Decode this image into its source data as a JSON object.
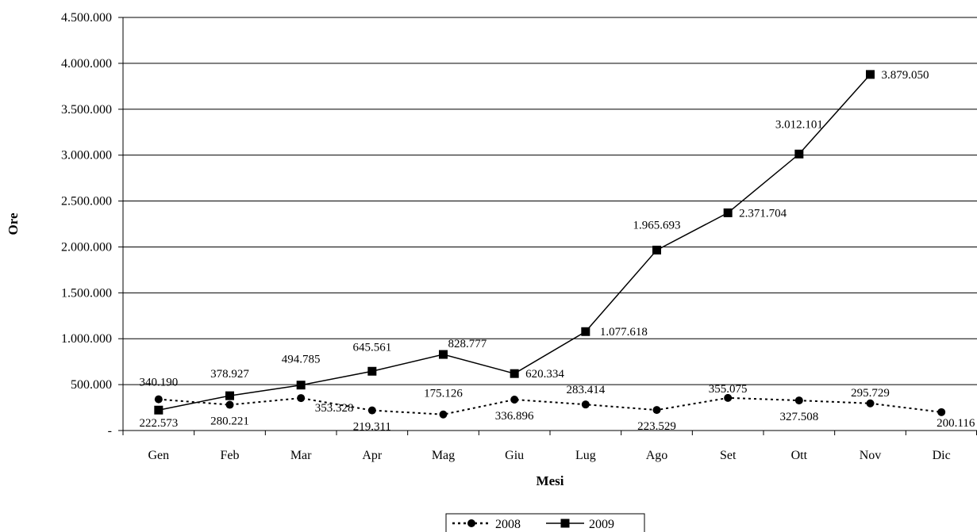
{
  "chart_data": {
    "type": "line",
    "xlabel": "Mesi",
    "ylabel": "Ore",
    "categories": [
      "Gen",
      "Feb",
      "Mar",
      "Apr",
      "Mag",
      "Giu",
      "Lug",
      "Ago",
      "Set",
      "Ott",
      "Nov",
      "Dic"
    ],
    "ylim": [
      0,
      4500000
    ],
    "yticks": [
      0,
      500000,
      1000000,
      1500000,
      2000000,
      2500000,
      3000000,
      3500000,
      4000000,
      4500000
    ],
    "ytick_labels": [
      "-",
      "500.000",
      "1.000.000",
      "1.500.000",
      "2.000.000",
      "2.500.000",
      "3.000.000",
      "3.500.000",
      "4.000.000",
      "4.500.000"
    ],
    "grid": true,
    "legend_position": "bottom-center",
    "series": [
      {
        "name": "2008",
        "style": "dotted",
        "marker": "circle",
        "color": "#000000",
        "values": [
          340190,
          280221,
          353328,
          219311,
          175126,
          336896,
          283414,
          223529,
          355075,
          327508,
          295729,
          200116
        ],
        "labels": [
          "340.190",
          "280.221",
          "353.328",
          "219.311",
          "175.126",
          "336.896",
          "283.414",
          "223.529",
          "355.075",
          "327.508",
          "295.729",
          "200.116"
        ]
      },
      {
        "name": "2009",
        "style": "solid",
        "marker": "square",
        "color": "#000000",
        "values": [
          222573,
          378927,
          494785,
          645561,
          828777,
          620334,
          1077618,
          1965693,
          2371704,
          3012101,
          3879050,
          null
        ],
        "labels": [
          "222.573",
          "378.927",
          "494.785",
          "645.561",
          "828.777",
          "620.334",
          "1.077.618",
          "1.965.693",
          "2.371.704",
          "3.012.101",
          "3.879.050",
          null
        ]
      }
    ]
  }
}
